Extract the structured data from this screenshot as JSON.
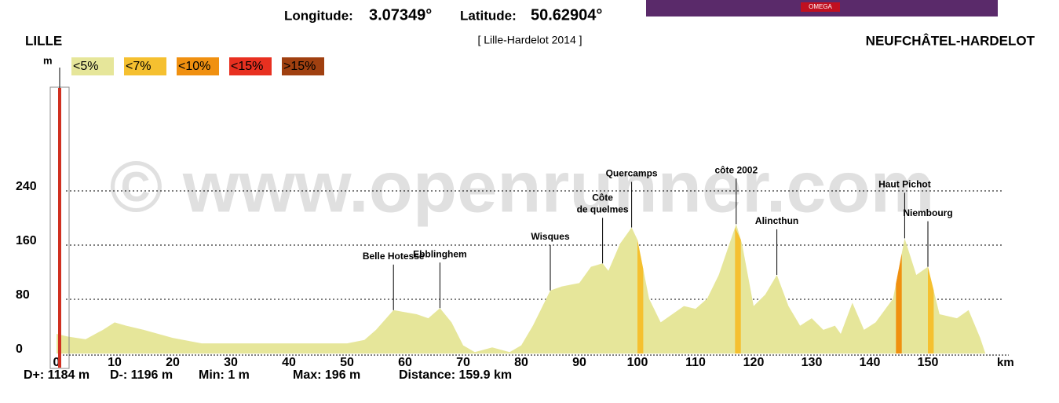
{
  "header": {
    "longitude_label": "Longitude:",
    "longitude": "3.07349°",
    "latitude_label": "Latitude:",
    "latitude": "50.62904°",
    "ad_text": "OMEGA"
  },
  "chart_data": {
    "type": "area",
    "start": "LILLE",
    "subtitle": "[ Lille-Hardelot 2014 ]",
    "end": "NEUFCHÂTEL-HARDELOT",
    "y_label": "m",
    "x_label": "km",
    "watermark": "© www.openrunner.com",
    "legend": [
      {
        "label": "<5%",
        "color": "#e6e69a"
      },
      {
        "label": "<7%",
        "color": "#f5c030"
      },
      {
        "label": "<10%",
        "color": "#f09010"
      },
      {
        "label": "<15%",
        "color": "#e83020"
      },
      {
        "label": ">15%",
        "color": "#a04010"
      }
    ],
    "color": "#e6e69a",
    "x": [
      0,
      2,
      5,
      8,
      10,
      12,
      15,
      20,
      25,
      30,
      40,
      50,
      53,
      55,
      58,
      62,
      64,
      66,
      68,
      70,
      72,
      75,
      78,
      80,
      82,
      85,
      87,
      90,
      92,
      94,
      95,
      97,
      99,
      100,
      102,
      104,
      106,
      108,
      110,
      112,
      114,
      117,
      118,
      120,
      122,
      124,
      126,
      128,
      130,
      132,
      134,
      135,
      137,
      139,
      141,
      144,
      146,
      148,
      150,
      152,
      155,
      157,
      159,
      159.9
    ],
    "values": [
      29,
      25,
      21,
      35,
      46,
      41,
      35,
      23,
      15,
      15,
      15,
      15,
      20,
      35,
      64,
      58,
      52,
      67,
      46,
      12,
      2,
      9,
      2,
      12,
      41,
      93,
      99,
      104,
      128,
      133,
      122,
      162,
      186,
      168,
      81,
      46,
      58,
      70,
      66,
      81,
      116,
      191,
      162,
      70,
      87,
      116,
      70,
      41,
      52,
      35,
      41,
      29,
      75,
      35,
      46,
      81,
      170,
      116,
      128,
      58,
      52,
      64,
      23,
      0
    ],
    "steep_segments": [
      {
        "x0": 100,
        "x1": 101,
        "color": "#f5c030"
      },
      {
        "x0": 116.8,
        "x1": 117.8,
        "color": "#f5c030"
      },
      {
        "x0": 144.5,
        "x1": 145.5,
        "color": "#f09010"
      },
      {
        "x0": 150,
        "x1": 151,
        "color": "#f5c030"
      }
    ],
    "annotations": [
      {
        "text": [
          "Belle Hotesse"
        ],
        "x": 58,
        "y": 64
      },
      {
        "text": [
          "Ebblinghem"
        ],
        "x": 66,
        "y": 67
      },
      {
        "text": [
          "Wisques"
        ],
        "x": 85,
        "y": 93
      },
      {
        "text": [
          "Côte",
          "de quelmes"
        ],
        "x": 94,
        "y": 133
      },
      {
        "text": [
          "Quercamps"
        ],
        "x": 99,
        "y": 186
      },
      {
        "text": [
          "côte 2002"
        ],
        "x": 117,
        "y": 191
      },
      {
        "text": [
          "Alincthun"
        ],
        "x": 124,
        "y": 116
      },
      {
        "text": [
          "Haut Pichot"
        ],
        "x": 146,
        "y": 170
      },
      {
        "text": [
          "Niembourg"
        ],
        "x": 150,
        "y": 128
      }
    ],
    "xlim": [
      0,
      165
    ],
    "xticks": [
      0,
      10,
      20,
      30,
      40,
      50,
      60,
      70,
      80,
      90,
      100,
      110,
      120,
      130,
      140,
      150
    ],
    "ylim": [
      0,
      400
    ],
    "yticks": [
      0,
      80,
      160,
      240
    ],
    "grid": true,
    "stats": [
      "D+: 1184 m",
      "D-: 1196 m",
      "Min: 1 m",
      "Max: 196 m",
      "Distance: 159.9 km"
    ]
  }
}
